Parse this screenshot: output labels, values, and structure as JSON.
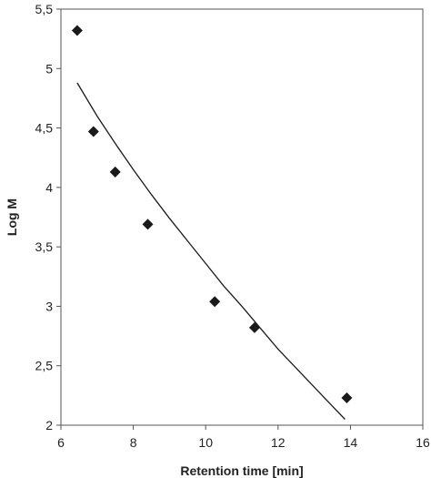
{
  "chart_data": {
    "type": "scatter",
    "title": "",
    "xlabel": "Retention time [min]",
    "ylabel": "Log M",
    "xlim": [
      6,
      16
    ],
    "ylim": [
      2,
      5.5
    ],
    "xticks": [
      "6",
      "8",
      "10",
      "12",
      "14",
      "16"
    ],
    "yticks": [
      "2",
      "2,5",
      "3",
      "3,5",
      "4",
      "4,5",
      "5",
      "5,5"
    ],
    "grid": false,
    "legend": "none",
    "series": [
      {
        "kind": "points",
        "marker": "diamond",
        "color": "#1a1a1a",
        "x": [
          6.45,
          6.9,
          7.5,
          8.4,
          10.25,
          11.35,
          13.9
        ],
        "y": [
          5.32,
          4.47,
          4.13,
          3.69,
          3.04,
          2.82,
          2.23
        ]
      },
      {
        "kind": "fit-curve",
        "color": "#1a1a1a",
        "x": [
          6.45,
          7.0,
          7.5,
          8.0,
          8.5,
          9.0,
          9.5,
          10.0,
          10.5,
          11.0,
          11.5,
          12.0,
          12.5,
          13.0,
          13.5,
          13.85
        ],
        "y": [
          4.88,
          4.6,
          4.37,
          4.15,
          3.94,
          3.74,
          3.55,
          3.36,
          3.17,
          3.0,
          2.82,
          2.64,
          2.48,
          2.32,
          2.16,
          2.05
        ]
      }
    ]
  }
}
